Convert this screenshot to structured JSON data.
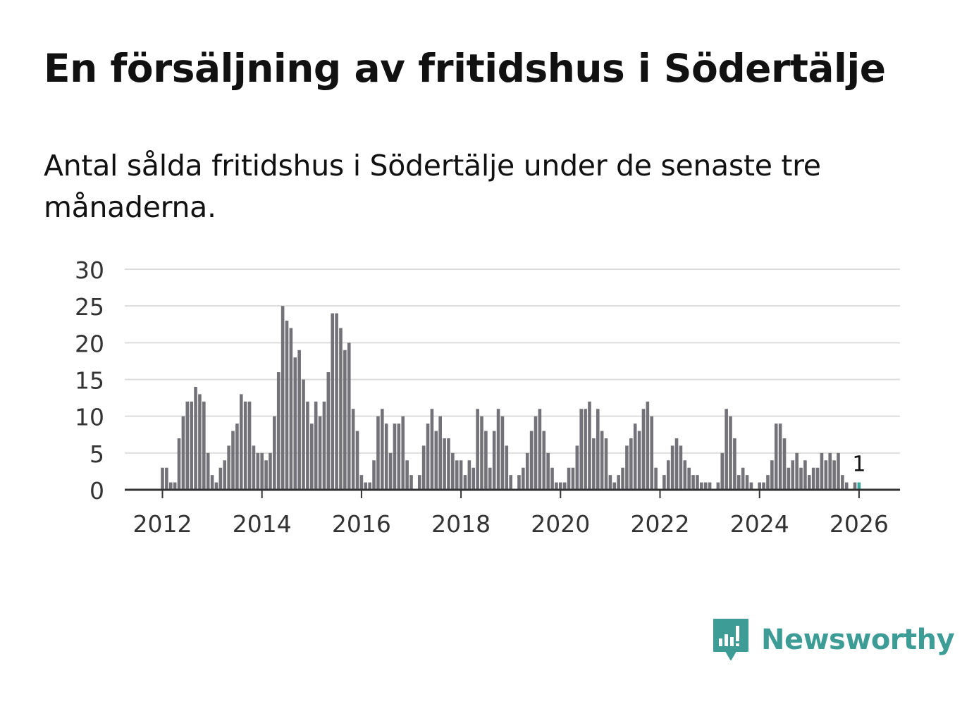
{
  "header": {
    "title": "En försäljning av fritidshus i Södertälje",
    "subtitle": "Antal sålda fritidshus i Södertälje under de senaste tre månaderna."
  },
  "brand": {
    "name": "Newsworthy"
  },
  "colors": {
    "bar": "#737278",
    "highlight": "#3aa59c",
    "grid": "#dddddd",
    "axis": "#333333",
    "text": "#111111",
    "brand": "#3d9c96"
  },
  "chart_data": {
    "type": "bar",
    "x_start": "2012-01",
    "x_end": "2026-02",
    "x_tick_labels": [
      "2012",
      "2014",
      "2016",
      "2018",
      "2020",
      "2022",
      "2024",
      "2026"
    ],
    "y_tick_labels": [
      "0",
      "5",
      "10",
      "15",
      "20",
      "25",
      "30"
    ],
    "ylim": [
      0,
      30
    ],
    "grid": true,
    "highlight_label": "1",
    "values": [
      3,
      3,
      1,
      1,
      7,
      10,
      12,
      12,
      14,
      13,
      12,
      5,
      2,
      1,
      3,
      4,
      6,
      8,
      9,
      13,
      12,
      12,
      6,
      5,
      5,
      4,
      5,
      10,
      16,
      25,
      23,
      22,
      18,
      19,
      15,
      12,
      9,
      12,
      10,
      12,
      16,
      24,
      24,
      22,
      19,
      20,
      11,
      8,
      2,
      1,
      1,
      4,
      10,
      11,
      9,
      5,
      9,
      9,
      10,
      4,
      2,
      0,
      2,
      6,
      9,
      11,
      8,
      10,
      7,
      7,
      5,
      4,
      4,
      2,
      4,
      3,
      11,
      10,
      8,
      3,
      8,
      11,
      10,
      6,
      2,
      0,
      2,
      3,
      5,
      8,
      10,
      11,
      8,
      5,
      3,
      1,
      1,
      1,
      3,
      3,
      6,
      11,
      11,
      12,
      7,
      11,
      8,
      7,
      2,
      1,
      2,
      3,
      6,
      7,
      9,
      8,
      11,
      12,
      10,
      3,
      0,
      2,
      4,
      6,
      7,
      6,
      4,
      3,
      2,
      2,
      1,
      1,
      1,
      0,
      1,
      5,
      11,
      10,
      7,
      2,
      3,
      2,
      1,
      0,
      1,
      1,
      2,
      4,
      9,
      9,
      7,
      3,
      4,
      5,
      3,
      4,
      2,
      3,
      3,
      5,
      4,
      5,
      4,
      5,
      2,
      1,
      0,
      1,
      1
    ]
  }
}
